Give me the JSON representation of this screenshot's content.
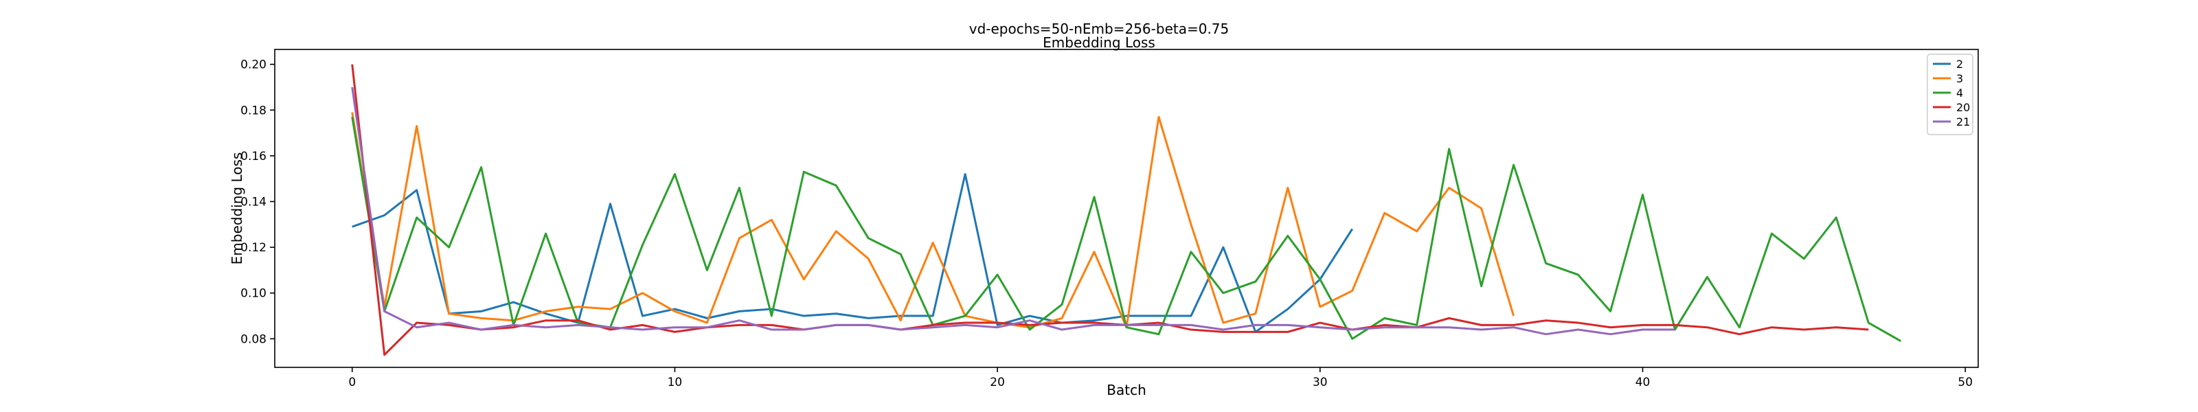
{
  "chart_data": {
    "type": "line",
    "title": "vd-epochs=50-nEmb=256-beta=0.75",
    "subtitle": "Embedding Loss",
    "xlabel": "Batch",
    "ylabel": "Embedding Loss",
    "xlim": [
      -2.4,
      50.4
    ],
    "ylim": [
      0.0675,
      0.2065
    ],
    "x_ticks": [
      0,
      10,
      20,
      30,
      40,
      50
    ],
    "y_ticks": [
      0.08,
      0.1,
      0.12,
      0.14,
      0.16,
      0.18,
      0.2
    ],
    "x_tick_labels": [
      "0",
      "10",
      "20",
      "30",
      "40",
      "50"
    ],
    "y_tick_labels": [
      "0.08",
      "0.10",
      "0.12",
      "0.14",
      "0.16",
      "0.18",
      "0.20"
    ],
    "grid": false,
    "legend_position": "top-right",
    "series": [
      {
        "name": "2",
        "color": "#1f77b4",
        "y": [
          0.129,
          0.134,
          0.145,
          0.091,
          0.092,
          0.096,
          0.091,
          0.087,
          0.139,
          0.09,
          0.093,
          0.089,
          0.092,
          0.093,
          0.09,
          0.091,
          0.089,
          0.09,
          0.09,
          0.152,
          0.086,
          0.09,
          0.087,
          0.088,
          0.09,
          0.09,
          0.09,
          0.12,
          0.083,
          0.093,
          0.106,
          0.128
        ]
      },
      {
        "name": "3",
        "color": "#ff7f0e",
        "y": [
          0.179,
          0.094,
          0.173,
          0.091,
          0.089,
          0.088,
          0.092,
          0.094,
          0.093,
          0.1,
          0.092,
          0.087,
          0.124,
          0.132,
          0.106,
          0.127,
          0.115,
          0.088,
          0.122,
          0.09,
          0.087,
          0.085,
          0.089,
          0.118,
          0.085,
          0.177,
          0.13,
          0.087,
          0.091,
          0.146,
          0.094,
          0.101,
          0.135,
          0.127,
          0.146,
          0.137,
          0.09
        ]
      },
      {
        "name": "4",
        "color": "#2ca02c",
        "y": [
          0.177,
          0.092,
          0.133,
          0.12,
          0.155,
          0.086,
          0.126,
          0.087,
          0.085,
          0.121,
          0.152,
          0.11,
          0.146,
          0.09,
          0.153,
          0.147,
          0.124,
          0.117,
          0.086,
          0.09,
          0.108,
          0.084,
          0.095,
          0.142,
          0.085,
          0.082,
          0.118,
          0.1,
          0.105,
          0.125,
          0.106,
          0.08,
          0.089,
          0.086,
          0.163,
          0.103,
          0.156,
          0.113,
          0.108,
          0.092,
          0.143,
          0.084,
          0.107,
          0.085,
          0.126,
          0.115,
          0.133,
          0.087,
          0.079
        ]
      },
      {
        "name": "20",
        "color": "#d62728",
        "y": [
          0.2,
          0.073,
          0.087,
          0.086,
          0.084,
          0.085,
          0.088,
          0.088,
          0.084,
          0.086,
          0.083,
          0.085,
          0.086,
          0.086,
          0.084,
          0.086,
          0.086,
          0.084,
          0.086,
          0.087,
          0.087,
          0.086,
          0.087,
          0.087,
          0.086,
          0.087,
          0.084,
          0.083,
          0.083,
          0.083,
          0.087,
          0.084,
          0.086,
          0.085,
          0.089,
          0.086,
          0.086,
          0.088,
          0.087,
          0.085,
          0.086,
          0.086,
          0.085,
          0.082,
          0.085,
          0.084,
          0.085,
          0.084
        ]
      },
      {
        "name": "21",
        "color": "#9467bd",
        "y": [
          0.19,
          0.092,
          0.085,
          0.087,
          0.084,
          0.086,
          0.085,
          0.086,
          0.085,
          0.084,
          0.085,
          0.085,
          0.088,
          0.084,
          0.084,
          0.086,
          0.086,
          0.084,
          0.085,
          0.086,
          0.085,
          0.088,
          0.084,
          0.086,
          0.086,
          0.086,
          0.086,
          0.084,
          0.086,
          0.086,
          0.085,
          0.084,
          0.085,
          0.085,
          0.085,
          0.084,
          0.085,
          0.082,
          0.084,
          0.082,
          0.084,
          0.084
        ]
      }
    ]
  }
}
